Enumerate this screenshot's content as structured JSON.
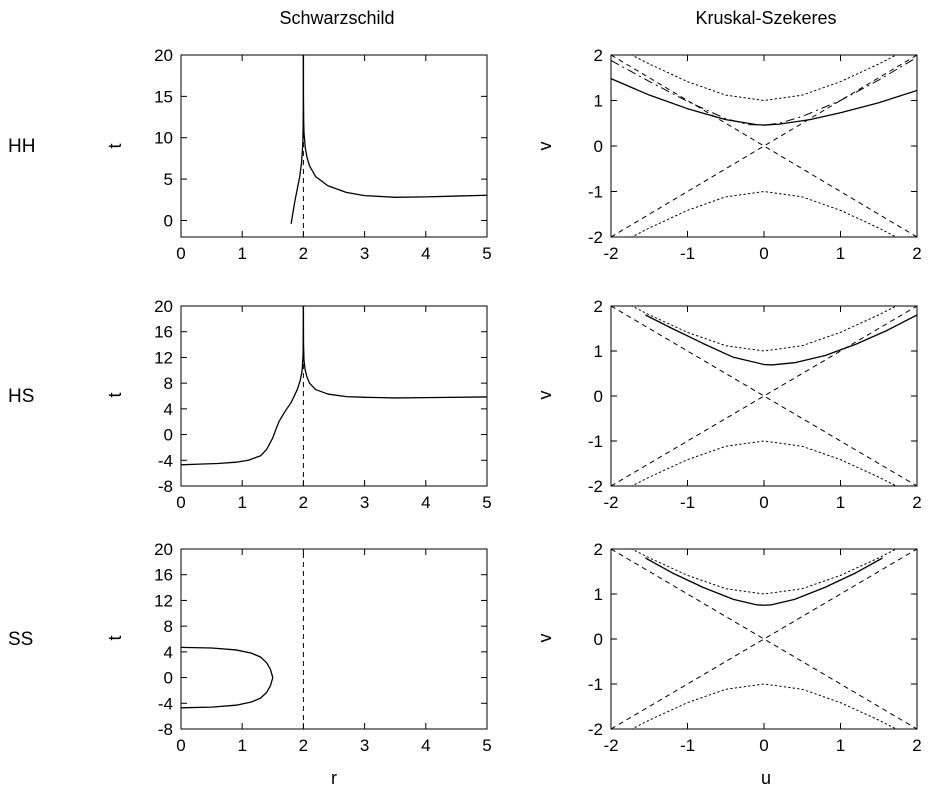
{
  "column_titles": [
    "Schwarzschild",
    "Kruskal-Szekeres"
  ],
  "row_labels": [
    "HH",
    "HS",
    "SS"
  ],
  "axis_labels": {
    "schwarzschild_x": "r",
    "schwarzschild_y": "t",
    "kruskal_x": "u",
    "kruskal_y": "v"
  },
  "chart_data": [
    {
      "id": "HH-schwarzschild",
      "type": "line",
      "xlim": [
        0,
        5
      ],
      "ylim": [
        -2,
        20
      ],
      "xticks": [
        0,
        1,
        2,
        3,
        4,
        5
      ],
      "yticks": [
        0,
        5,
        10,
        15,
        20
      ],
      "xlabel": "",
      "ylabel": "t",
      "series": [
        {
          "style": "solid",
          "x": [
            1.8,
            1.83,
            1.86,
            1.9,
            1.94,
            1.97,
            1.99,
            1.995,
            1.999,
            2.0
          ],
          "y": [
            -0.4,
            1.0,
            2.3,
            3.8,
            5.3,
            7.0,
            9.2,
            11.0,
            14.0,
            20.0
          ]
        },
        {
          "style": "solid",
          "x": [
            2.0,
            2.001,
            2.005,
            2.01,
            2.03,
            2.06,
            2.1,
            2.2,
            2.4,
            2.7,
            3.0,
            3.5,
            4.0,
            4.5,
            5.0
          ],
          "y": [
            20.0,
            15.0,
            11.8,
            10.6,
            8.8,
            7.6,
            6.6,
            5.3,
            4.2,
            3.4,
            3.0,
            2.8,
            2.85,
            2.95,
            3.05
          ]
        },
        {
          "style": "dashed",
          "x": [
            2,
            2
          ],
          "y": [
            -2,
            20
          ]
        }
      ]
    },
    {
      "id": "HH-kruskal",
      "type": "line",
      "xlim": [
        -2,
        2
      ],
      "ylim": [
        -2,
        2
      ],
      "xticks": [
        -2,
        -1,
        0,
        1,
        2
      ],
      "yticks": [
        -2,
        -1,
        0,
        1,
        2
      ],
      "xlabel": "",
      "ylabel": "v",
      "series": [
        {
          "style": "solid",
          "x": [
            -2.0,
            -1.5,
            -1.0,
            -0.5,
            -0.1,
            0.0,
            0.2,
            0.6,
            1.0,
            1.5,
            2.0
          ],
          "y": [
            1.48,
            1.12,
            0.82,
            0.58,
            0.47,
            0.46,
            0.48,
            0.58,
            0.73,
            0.95,
            1.22
          ]
        },
        {
          "style": "dashdot",
          "x": [
            -2.0,
            -1.5,
            -1.0,
            -0.5,
            -0.2,
            0.0,
            0.2,
            0.5,
            1.0,
            1.5,
            2.0
          ],
          "y": [
            1.88,
            1.42,
            0.98,
            0.6,
            0.47,
            0.46,
            0.5,
            0.65,
            1.0,
            1.45,
            1.95
          ]
        },
        {
          "style": "dashed",
          "x": [
            -2,
            2
          ],
          "y": [
            -2,
            2
          ]
        },
        {
          "style": "dashed",
          "x": [
            -2,
            2
          ],
          "y": [
            2,
            -2
          ]
        },
        {
          "style": "dotted",
          "x": [
            -2.0,
            -1.5,
            -1.0,
            -0.5,
            0.0,
            0.5,
            1.0,
            1.5,
            2.0
          ],
          "y": [
            2.236,
            1.803,
            1.414,
            1.118,
            1.0,
            1.118,
            1.414,
            1.803,
            2.236
          ]
        },
        {
          "style": "dotted",
          "x": [
            -2.0,
            -1.5,
            -1.0,
            -0.5,
            0.0,
            0.5,
            1.0,
            1.5,
            2.0
          ],
          "y": [
            -2.236,
            -1.803,
            -1.414,
            -1.118,
            -1.0,
            -1.118,
            -1.414,
            -1.803,
            -2.236
          ]
        }
      ]
    },
    {
      "id": "HS-schwarzschild",
      "type": "line",
      "xlim": [
        0,
        5
      ],
      "ylim": [
        -8,
        20
      ],
      "xticks": [
        0,
        1,
        2,
        3,
        4,
        5
      ],
      "yticks": [
        -8,
        -4,
        0,
        4,
        8,
        12,
        16,
        20
      ],
      "xlabel": "",
      "ylabel": "t",
      "series": [
        {
          "style": "solid",
          "x": [
            0.0,
            0.3,
            0.6,
            0.9,
            1.1,
            1.3,
            1.4,
            1.5,
            1.55,
            1.6,
            1.7,
            1.8,
            1.9,
            1.95,
            1.98,
            1.995,
            2.0
          ],
          "y": [
            -4.7,
            -4.6,
            -4.5,
            -4.3,
            -4.0,
            -3.3,
            -2.3,
            -0.5,
            0.8,
            2.0,
            3.6,
            5.0,
            7.0,
            8.5,
            10.0,
            12.5,
            20.0
          ]
        },
        {
          "style": "solid",
          "x": [
            2.0,
            2.002,
            2.01,
            2.03,
            2.06,
            2.1,
            2.2,
            2.4,
            2.7,
            3.0,
            3.5,
            4.0,
            5.0
          ],
          "y": [
            20.0,
            14.0,
            11.5,
            10.0,
            8.9,
            8.0,
            7.0,
            6.3,
            5.9,
            5.8,
            5.7,
            5.75,
            5.85
          ]
        },
        {
          "style": "dashed",
          "x": [
            2,
            2
          ],
          "y": [
            -8,
            20
          ]
        }
      ]
    },
    {
      "id": "HS-kruskal",
      "type": "line",
      "xlim": [
        -2,
        2
      ],
      "ylim": [
        -2,
        2
      ],
      "xticks": [
        -2,
        -1,
        0,
        1,
        2
      ],
      "yticks": [
        -2,
        -1,
        0,
        1,
        2
      ],
      "xlabel": "",
      "ylabel": "v",
      "series": [
        {
          "style": "solid",
          "x": [
            -1.55,
            -1.2,
            -0.8,
            -0.4,
            0.0,
            0.1,
            0.4,
            0.8,
            1.2,
            1.6,
            2.0
          ],
          "y": [
            1.8,
            1.5,
            1.17,
            0.86,
            0.7,
            0.69,
            0.74,
            0.9,
            1.15,
            1.45,
            1.8
          ]
        },
        {
          "style": "dashed",
          "x": [
            -2,
            2
          ],
          "y": [
            -2,
            2
          ]
        },
        {
          "style": "dashed",
          "x": [
            -2,
            2
          ],
          "y": [
            2,
            -2
          ]
        },
        {
          "style": "dotted",
          "x": [
            -2.0,
            -1.5,
            -1.0,
            -0.5,
            0.0,
            0.5,
            1.0,
            1.5,
            2.0
          ],
          "y": [
            2.236,
            1.803,
            1.414,
            1.118,
            1.0,
            1.118,
            1.414,
            1.803,
            2.236
          ]
        },
        {
          "style": "dotted",
          "x": [
            -2.0,
            -1.5,
            -1.0,
            -0.5,
            0.0,
            0.5,
            1.0,
            1.5,
            2.0
          ],
          "y": [
            -2.236,
            -1.803,
            -1.414,
            -1.118,
            -1.0,
            -1.118,
            -1.414,
            -1.803,
            -2.236
          ]
        }
      ]
    },
    {
      "id": "SS-schwarzschild",
      "type": "line",
      "xlim": [
        0,
        5
      ],
      "ylim": [
        -8,
        20
      ],
      "xticks": [
        0,
        1,
        2,
        3,
        4,
        5
      ],
      "yticks": [
        -8,
        -4,
        0,
        4,
        8,
        12,
        16,
        20
      ],
      "xlabel": "r",
      "ylabel": "t",
      "series": [
        {
          "style": "solid",
          "x": [
            0.0,
            0.5,
            0.9,
            1.15,
            1.3,
            1.4,
            1.46,
            1.5,
            1.5,
            1.46,
            1.4,
            1.3,
            1.15,
            0.9,
            0.5,
            0.0
          ],
          "y": [
            4.7,
            4.6,
            4.3,
            3.8,
            3.2,
            2.3,
            1.3,
            0.0,
            0.0,
            -1.3,
            -2.3,
            -3.2,
            -3.8,
            -4.3,
            -4.6,
            -4.7
          ]
        },
        {
          "style": "dashed",
          "x": [
            2,
            2
          ],
          "y": [
            -8,
            20
          ]
        }
      ]
    },
    {
      "id": "SS-kruskal",
      "type": "line",
      "xlim": [
        -2,
        2
      ],
      "ylim": [
        -2,
        2
      ],
      "xticks": [
        -2,
        -1,
        0,
        1,
        2
      ],
      "yticks": [
        -2,
        -1,
        0,
        1,
        2
      ],
      "xlabel": "u",
      "ylabel": "v",
      "series": [
        {
          "style": "solid",
          "x": [
            -1.55,
            -1.2,
            -0.8,
            -0.4,
            -0.1,
            0.0,
            0.1,
            0.4,
            0.8,
            1.2,
            1.55
          ],
          "y": [
            1.8,
            1.47,
            1.15,
            0.88,
            0.76,
            0.75,
            0.76,
            0.88,
            1.15,
            1.47,
            1.8
          ]
        },
        {
          "style": "dashed",
          "x": [
            -2,
            2
          ],
          "y": [
            -2,
            2
          ]
        },
        {
          "style": "dashed",
          "x": [
            -2,
            2
          ],
          "y": [
            2,
            -2
          ]
        },
        {
          "style": "dotted",
          "x": [
            -2.0,
            -1.5,
            -1.0,
            -0.5,
            0.0,
            0.5,
            1.0,
            1.5,
            2.0
          ],
          "y": [
            2.236,
            1.803,
            1.414,
            1.118,
            1.0,
            1.118,
            1.414,
            1.803,
            2.236
          ]
        },
        {
          "style": "dotted",
          "x": [
            -2.0,
            -1.5,
            -1.0,
            -0.5,
            0.0,
            0.5,
            1.0,
            1.5,
            2.0
          ],
          "y": [
            -2.236,
            -1.803,
            -1.414,
            -1.118,
            -1.0,
            -1.118,
            -1.414,
            -1.803,
            -2.236
          ]
        }
      ]
    }
  ]
}
